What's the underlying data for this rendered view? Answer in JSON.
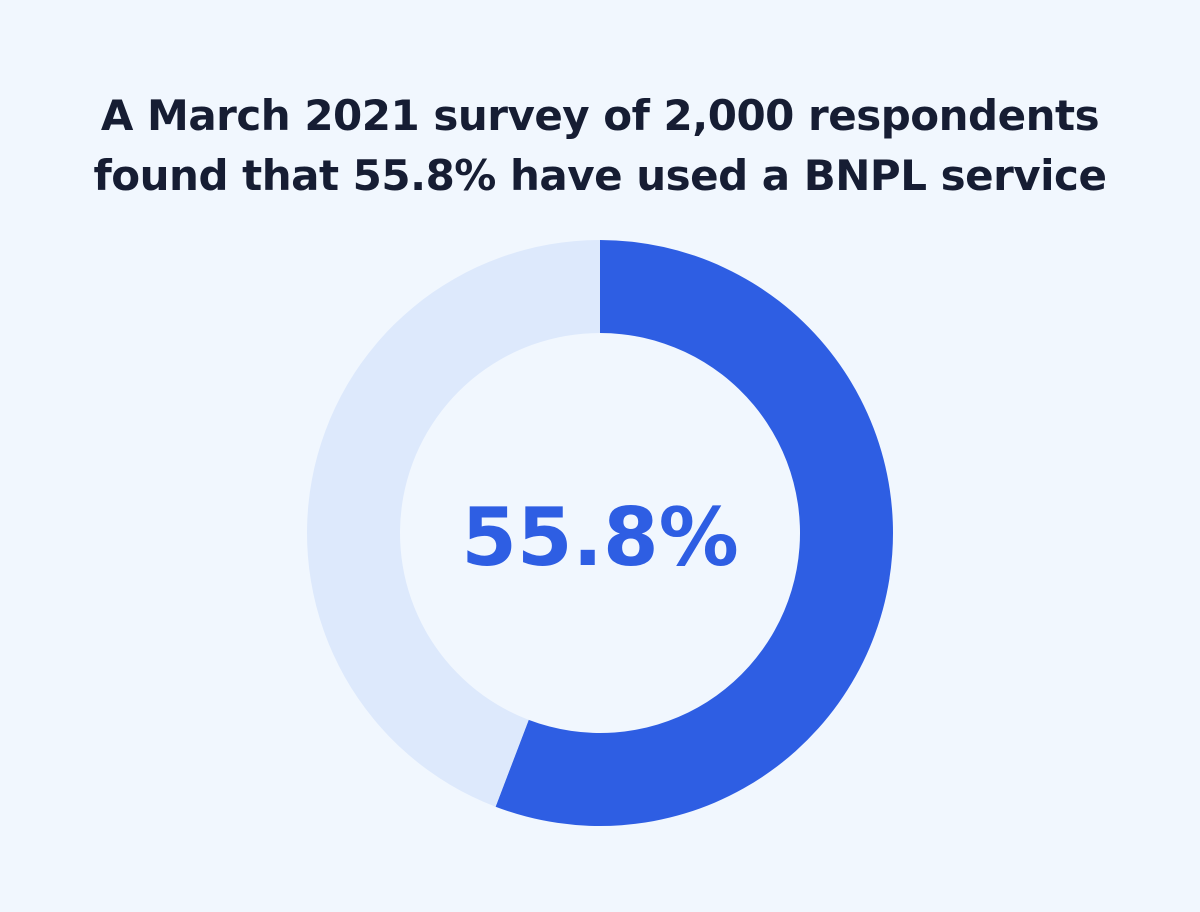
{
  "title_lines": [
    "A March 2021 survey of 2,000 respondents",
    "found that 55.8% have used a BNPL service"
  ],
  "chart_data": {
    "type": "pie",
    "title": "A March 2021 survey of 2,000 respondents found that 55.8% have used a BNPL service",
    "center_label": "55.8%",
    "slices": [
      {
        "value": 55.8,
        "color": "#2e5ee3"
      },
      {
        "value": 44.2,
        "color": "#dde9fc"
      }
    ]
  },
  "colors": {
    "background": "#f1f7fe",
    "title": "#161d33",
    "accent": "#2e5ee3",
    "remainder": "#dde9fc"
  }
}
